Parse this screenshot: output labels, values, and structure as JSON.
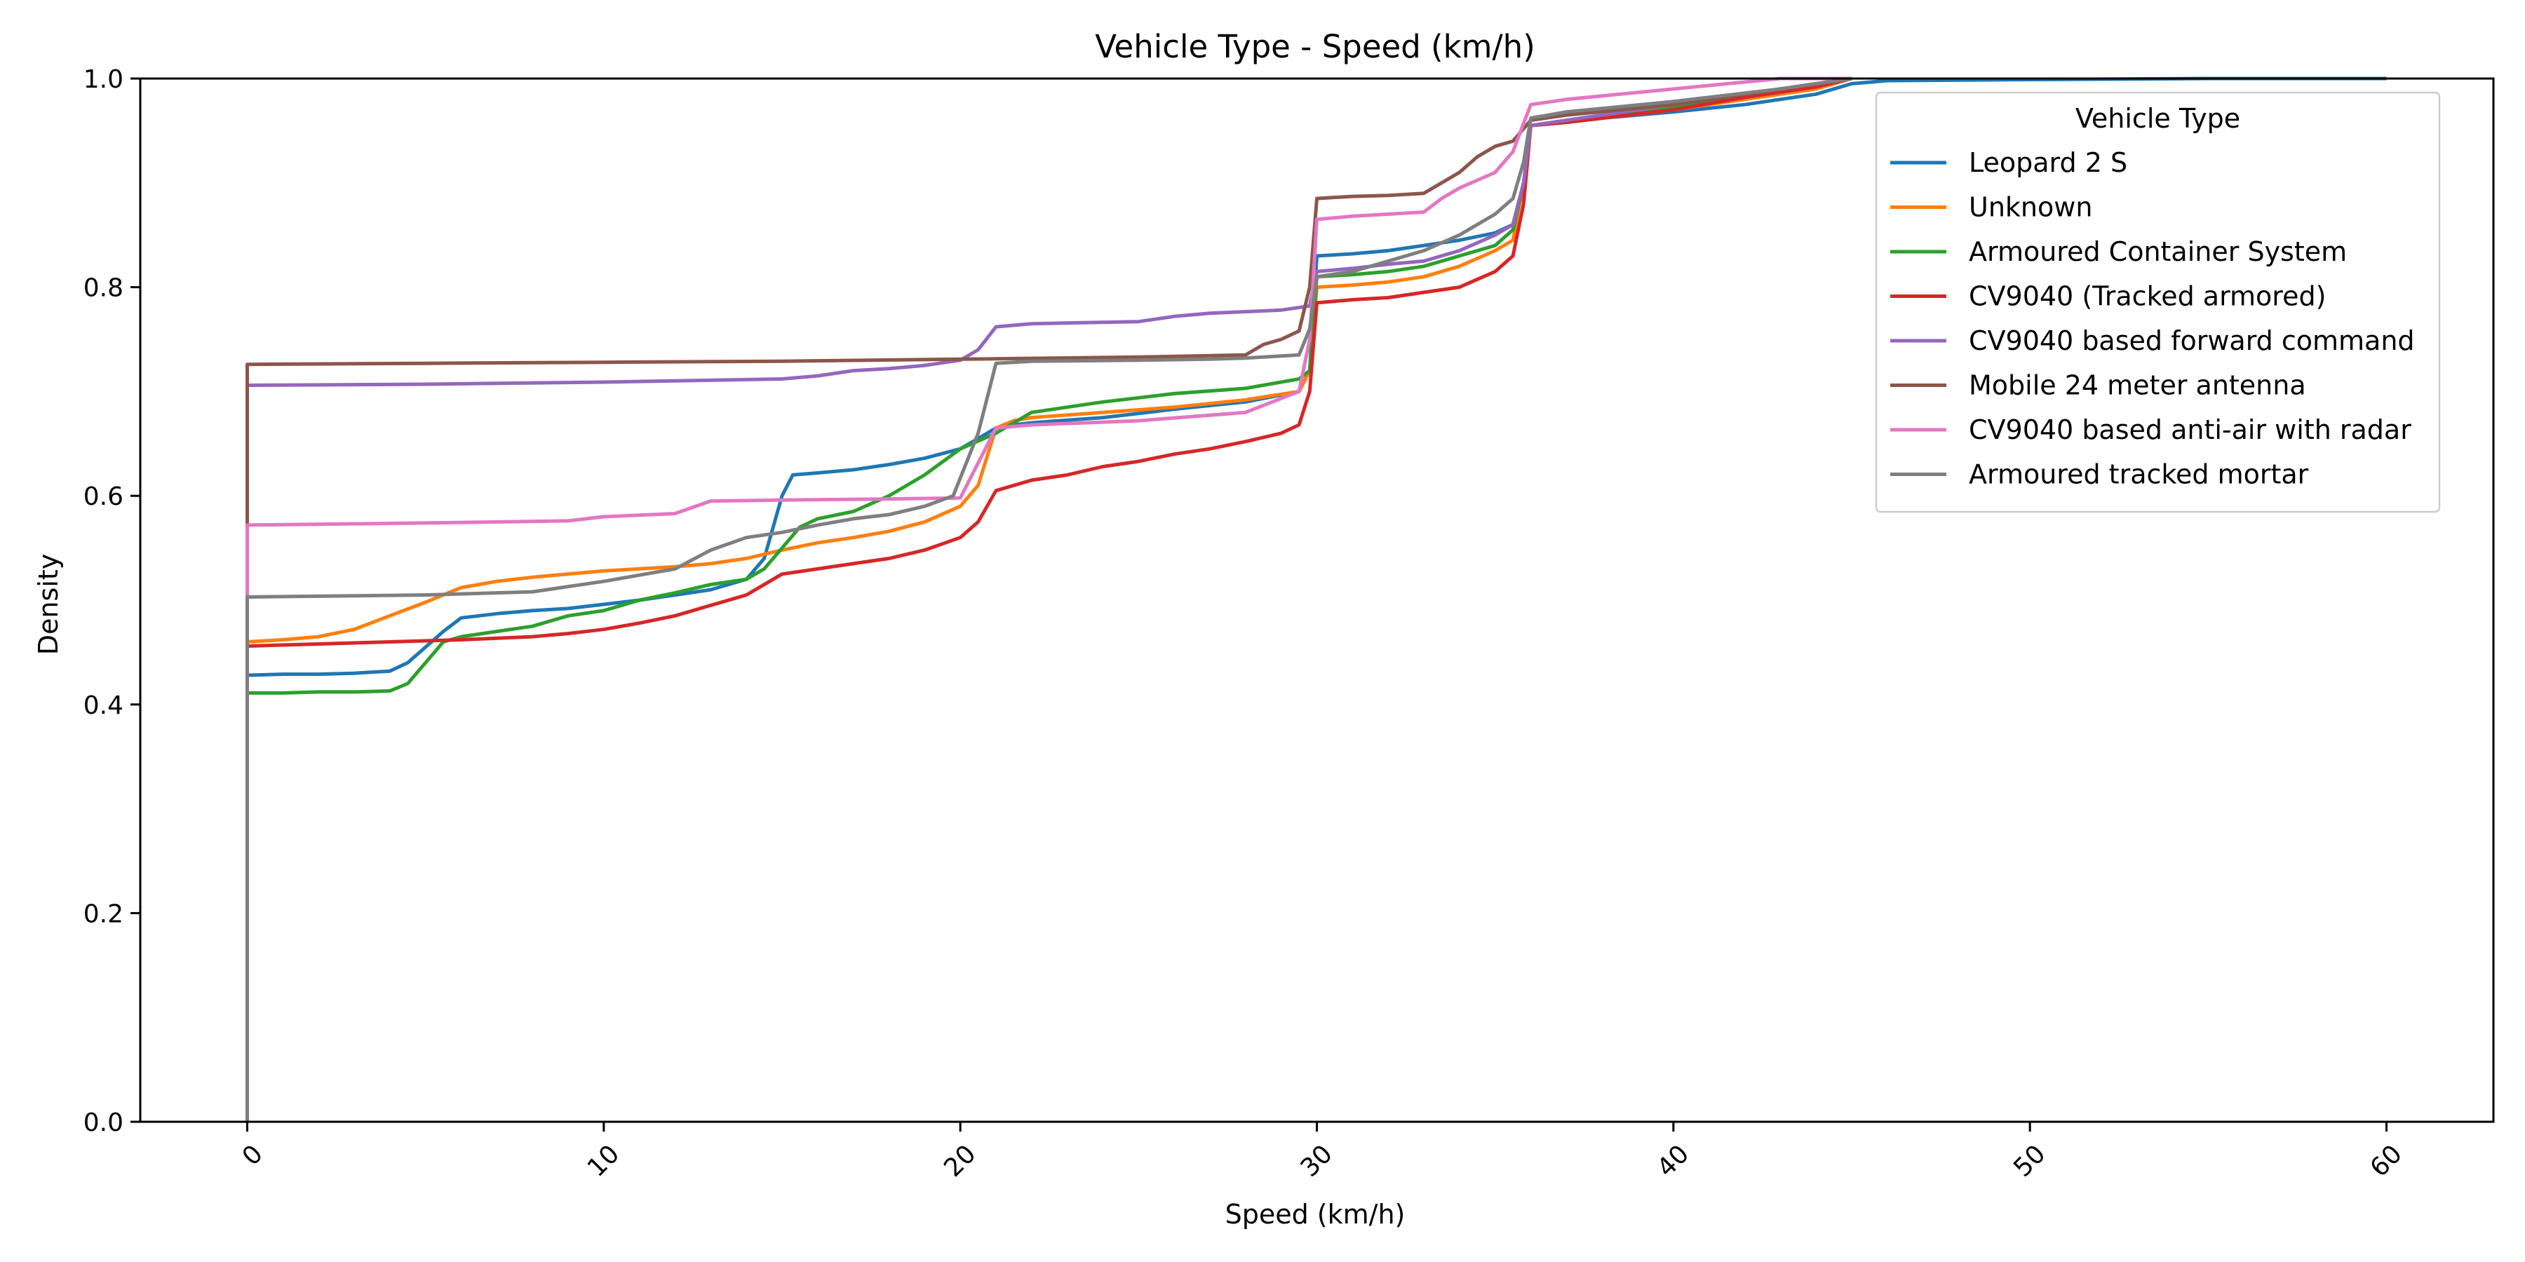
{
  "chart_data": {
    "type": "line",
    "title": "Vehicle Type - Speed (km/h)",
    "xlabel": "Speed (km/h)",
    "ylabel": "Density",
    "xlim": [
      -3,
      63
    ],
    "ylim": [
      0,
      1
    ],
    "xticks": [
      0,
      10,
      20,
      30,
      40,
      50,
      60
    ],
    "yticks": [
      0.0,
      0.2,
      0.4,
      0.6,
      0.8,
      1.0
    ],
    "xtick_labels": [
      "0",
      "10",
      "20",
      "30",
      "40",
      "50",
      "60"
    ],
    "ytick_labels": [
      "0.0",
      "0.2",
      "0.4",
      "0.6",
      "0.8",
      "1.0"
    ],
    "grid": false,
    "legend": {
      "title": "Vehicle Type",
      "placement": "upper right"
    },
    "series": [
      {
        "name": "Leopard 2 S",
        "color": "#1f77b4",
        "x": [
          0,
          0,
          1,
          2,
          3,
          4,
          4.5,
          5,
          5.5,
          6,
          7,
          8,
          9,
          10,
          11,
          12,
          13,
          14,
          14.5,
          15,
          15.3,
          16,
          17,
          18,
          19,
          20,
          20.5,
          21,
          21.5,
          22,
          24,
          26,
          28,
          29.5,
          29.8,
          30,
          31,
          32,
          33,
          34,
          35,
          35.5,
          35.8,
          36,
          37,
          38,
          40,
          42,
          44,
          45,
          46,
          50,
          55,
          60
        ],
        "y": [
          0,
          0.428,
          0.429,
          0.429,
          0.43,
          0.432,
          0.44,
          0.455,
          0.47,
          0.483,
          0.487,
          0.49,
          0.492,
          0.496,
          0.5,
          0.505,
          0.51,
          0.52,
          0.54,
          0.6,
          0.62,
          0.622,
          0.625,
          0.63,
          0.636,
          0.645,
          0.655,
          0.665,
          0.668,
          0.67,
          0.675,
          0.683,
          0.69,
          0.7,
          0.72,
          0.83,
          0.832,
          0.835,
          0.84,
          0.845,
          0.852,
          0.86,
          0.9,
          0.955,
          0.958,
          0.962,
          0.968,
          0.975,
          0.985,
          0.995,
          0.998,
          0.999,
          1.0,
          1.0
        ]
      },
      {
        "name": "Unknown",
        "color": "#ff7f0e",
        "x": [
          0,
          0,
          1,
          2,
          3,
          4,
          5,
          6,
          7,
          8,
          10,
          12,
          13,
          14,
          15,
          16,
          17,
          18,
          19,
          20,
          20.5,
          21,
          21.5,
          22,
          24,
          26,
          28,
          29.5,
          29.8,
          30,
          31,
          32,
          33,
          34,
          35,
          35.5,
          35.8,
          36,
          37,
          38,
          40,
          42,
          44,
          45
        ],
        "y": [
          0,
          0.46,
          0.462,
          0.465,
          0.472,
          0.485,
          0.498,
          0.512,
          0.518,
          0.522,
          0.528,
          0.532,
          0.535,
          0.54,
          0.548,
          0.555,
          0.56,
          0.566,
          0.575,
          0.59,
          0.61,
          0.665,
          0.672,
          0.675,
          0.68,
          0.685,
          0.692,
          0.7,
          0.72,
          0.8,
          0.802,
          0.805,
          0.81,
          0.82,
          0.835,
          0.845,
          0.9,
          0.955,
          0.958,
          0.962,
          0.97,
          0.98,
          0.99,
          1.0
        ]
      },
      {
        "name": "Armoured Container System",
        "color": "#2ca02c",
        "x": [
          0,
          0,
          1,
          2,
          3,
          4,
          4.5,
          5,
          5.5,
          6,
          7,
          8,
          9,
          10,
          11,
          12,
          13,
          14,
          14.5,
          15,
          15.5,
          16,
          17,
          18,
          19,
          20,
          21,
          22,
          24,
          26,
          28,
          29.5,
          29.8,
          30,
          31,
          32,
          33,
          34,
          35,
          35.5,
          35.8,
          36,
          37,
          38,
          40,
          42,
          44,
          45
        ],
        "y": [
          0,
          0.411,
          0.411,
          0.412,
          0.412,
          0.413,
          0.42,
          0.44,
          0.46,
          0.465,
          0.47,
          0.475,
          0.485,
          0.49,
          0.5,
          0.507,
          0.515,
          0.52,
          0.53,
          0.55,
          0.57,
          0.578,
          0.585,
          0.6,
          0.62,
          0.645,
          0.66,
          0.68,
          0.69,
          0.698,
          0.703,
          0.712,
          0.72,
          0.81,
          0.812,
          0.815,
          0.82,
          0.83,
          0.84,
          0.855,
          0.9,
          0.955,
          0.958,
          0.962,
          0.972,
          0.982,
          0.992,
          1.0
        ]
      },
      {
        "name": "CV9040 (Tracked armored)",
        "color": "#d62728",
        "x": [
          0,
          0,
          2,
          4,
          6,
          8,
          9,
          10,
          11,
          12,
          13,
          14,
          14.5,
          15,
          16,
          17,
          18,
          19,
          20,
          20.5,
          21,
          22,
          23,
          24,
          25,
          26,
          27,
          28,
          29,
          29.5,
          29.8,
          30,
          31,
          32,
          33,
          34,
          35,
          35.5,
          35.8,
          36,
          37,
          38,
          40,
          42,
          44,
          45
        ],
        "y": [
          0,
          0.456,
          0.458,
          0.46,
          0.462,
          0.465,
          0.468,
          0.472,
          0.478,
          0.485,
          0.495,
          0.505,
          0.515,
          0.525,
          0.53,
          0.535,
          0.54,
          0.548,
          0.56,
          0.575,
          0.605,
          0.615,
          0.62,
          0.628,
          0.633,
          0.64,
          0.645,
          0.652,
          0.66,
          0.668,
          0.7,
          0.785,
          0.788,
          0.79,
          0.795,
          0.8,
          0.815,
          0.83,
          0.88,
          0.955,
          0.958,
          0.962,
          0.97,
          0.982,
          0.992,
          1.0
        ]
      },
      {
        "name": "CV9040 based forward command",
        "color": "#9467bd",
        "x": [
          0,
          0,
          5,
          10,
          15,
          16,
          17,
          18,
          19,
          20,
          20.5,
          21,
          22,
          25,
          26,
          27,
          29,
          29.8,
          30,
          31,
          32,
          33,
          34,
          35,
          35.5,
          35.8,
          36,
          37,
          40,
          43,
          45
        ],
        "y": [
          0,
          0.706,
          0.707,
          0.709,
          0.712,
          0.715,
          0.72,
          0.722,
          0.725,
          0.73,
          0.74,
          0.762,
          0.765,
          0.767,
          0.772,
          0.775,
          0.778,
          0.782,
          0.815,
          0.818,
          0.822,
          0.825,
          0.835,
          0.85,
          0.86,
          0.9,
          0.955,
          0.96,
          0.975,
          0.99,
          1.0
        ]
      },
      {
        "name": "Mobile 24 meter antenna",
        "color": "#8c564b",
        "x": [
          0,
          0,
          5,
          10,
          15,
          20,
          25,
          28,
          28.5,
          29,
          29.5,
          29.8,
          30,
          31,
          32,
          33,
          33.5,
          34,
          34.5,
          35,
          35.5,
          36,
          37,
          40,
          43,
          45
        ],
        "y": [
          0,
          0.726,
          0.727,
          0.728,
          0.729,
          0.731,
          0.733,
          0.735,
          0.745,
          0.75,
          0.758,
          0.8,
          0.885,
          0.887,
          0.888,
          0.89,
          0.9,
          0.91,
          0.925,
          0.935,
          0.94,
          0.96,
          0.965,
          0.975,
          0.99,
          1.0
        ]
      },
      {
        "name": "CV9040 based anti-air with radar",
        "color": "#e377c2",
        "x": [
          0,
          0,
          5,
          9,
          10,
          12,
          13,
          15,
          18,
          20,
          21,
          22,
          25,
          28,
          29.5,
          29.8,
          30,
          31,
          33,
          33.5,
          34,
          35,
          35.5,
          36,
          37,
          40,
          43,
          45
        ],
        "y": [
          0,
          0.572,
          0.574,
          0.576,
          0.58,
          0.583,
          0.595,
          0.596,
          0.597,
          0.598,
          0.665,
          0.668,
          0.672,
          0.68,
          0.7,
          0.75,
          0.865,
          0.868,
          0.872,
          0.885,
          0.895,
          0.91,
          0.93,
          0.975,
          0.98,
          0.99,
          1.0,
          1.0
        ]
      },
      {
        "name": "Armoured tracked mortar",
        "color": "#7f7f7f",
        "x": [
          0,
          0,
          5,
          8,
          10,
          12,
          13,
          14,
          15,
          16,
          17,
          18,
          19,
          19.8,
          20.5,
          21,
          22,
          25,
          27,
          28,
          29.5,
          29.8,
          30,
          31,
          32,
          33,
          34,
          35,
          35.5,
          35.8,
          36,
          37,
          40,
          43,
          45
        ],
        "y": [
          0,
          0.503,
          0.505,
          0.508,
          0.518,
          0.53,
          0.548,
          0.56,
          0.565,
          0.572,
          0.578,
          0.582,
          0.59,
          0.6,
          0.66,
          0.727,
          0.729,
          0.73,
          0.731,
          0.732,
          0.735,
          0.76,
          0.81,
          0.815,
          0.825,
          0.835,
          0.85,
          0.87,
          0.885,
          0.92,
          0.962,
          0.968,
          0.978,
          0.99,
          1.0
        ]
      }
    ]
  }
}
